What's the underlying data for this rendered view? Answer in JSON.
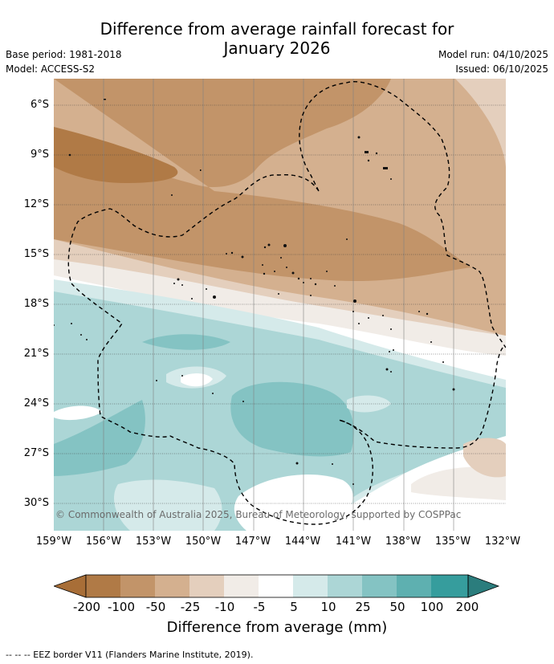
{
  "title_line1": "Difference from average rainfall forecast for",
  "title_line2": "January 2026",
  "base_period": "Base period: 1981-2018",
  "model": "Model: ACCESS-S2",
  "model_run": "Model run: 04/10/2025",
  "issued": "Issued: 06/10/2025",
  "lat_labels": [
    "6°S",
    "9°S",
    "12°S",
    "15°S",
    "18°S",
    "21°S",
    "24°S",
    "27°S",
    "30°S"
  ],
  "lon_labels": [
    "159°W",
    "156°W",
    "153°W",
    "150°W",
    "147°W",
    "144°W",
    "141°W",
    "138°W",
    "135°W",
    "132°W"
  ],
  "colorbar_ticks": [
    "-200",
    "-100",
    "-50",
    "-25",
    "-10",
    "-5",
    "5",
    "10",
    "25",
    "50",
    "100",
    "200"
  ],
  "colorbar_label": "Difference from average (mm)",
  "colors": {
    "lt_minus200": "#a86e37",
    "m200_m100": "#b07a46",
    "m100_m50": "#c29469",
    "m50_m25": "#d4b08f",
    "m25_m10": "#e4cfbd",
    "m10_m5": "#f1ece7",
    "m5_p5": "#ffffff",
    "p5_p10": "#d5eaea",
    "p10_p25": "#acd6d6",
    "p25_p50": "#84c3c3",
    "p50_p100": "#5eb0b0",
    "p100_p200": "#369d9d",
    "gt_200": "#2b7d7d"
  },
  "copyright": "© Commonwealth of Australia 2025, Bureau of Meteorology, supported by COSPPac",
  "eez_legend": "-- -- -- EEZ border V11 (Flanders Marine Institute, 2019)."
}
